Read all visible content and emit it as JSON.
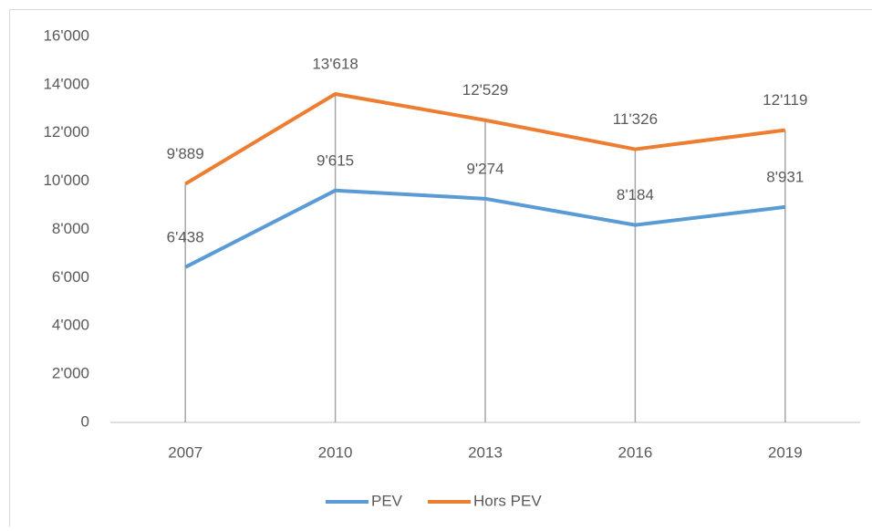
{
  "chart_data": {
    "type": "line",
    "categories": [
      "2007",
      "2010",
      "2013",
      "2016",
      "2019"
    ],
    "series": [
      {
        "name": "PEV",
        "color": "#5b9bd5",
        "values": [
          6438,
          9615,
          9274,
          8184,
          8931
        ],
        "value_labels": [
          "6'438",
          "9'615",
          "9'274",
          "8'184",
          "8'931"
        ]
      },
      {
        "name": "Hors PEV",
        "color": "#ed7d31",
        "values": [
          9889,
          13618,
          12529,
          11326,
          12119
        ],
        "value_labels": [
          "9'889",
          "13'618",
          "12'529",
          "11'326",
          "12'119"
        ]
      }
    ],
    "ylim": [
      0,
      16000
    ],
    "yticks": [
      0,
      {
        "value": 2000,
        "label": "2'000"
      },
      {
        "value": 4000,
        "label": "4'000"
      },
      {
        "value": 6000,
        "label": "6'000"
      },
      {
        "value": 8000,
        "label": "8'000"
      },
      {
        "value": 10000,
        "label": "10'000"
      },
      {
        "value": 12000,
        "label": "12'000"
      },
      {
        "value": 14000,
        "label": "14'000"
      },
      {
        "value": 16000,
        "label": "16'000"
      }
    ],
    "drop_lines": true,
    "legend": "bottom"
  }
}
